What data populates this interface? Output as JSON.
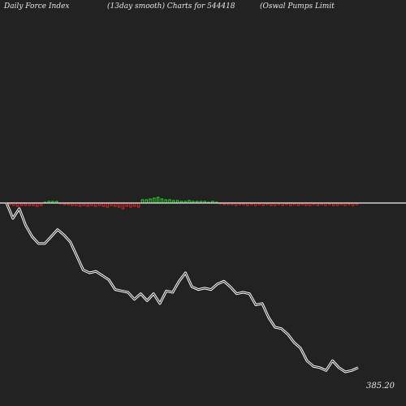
{
  "header": {
    "left": "Daily Force  Index",
    "center": "(13day smooth) Charts for 544418",
    "right": "(Oswal Pumps Limit"
  },
  "colors": {
    "background": "#222222",
    "zero_line": "#cfcfcf",
    "price_line": "#ffffff",
    "bar_positive": "#22dd22",
    "bar_negative": "#ee2222"
  },
  "chart_data": {
    "type": "line",
    "title": "Daily Force Index (13day smooth) Charts for 544418 (Oswal Pumps Limit",
    "last_price_label": "385.20",
    "series": [
      {
        "name": "price",
        "values": [
          1.0,
          0.89,
          0.96,
          0.84,
          0.76,
          0.71,
          0.71,
          0.76,
          0.81,
          0.77,
          0.72,
          0.62,
          0.52,
          0.5,
          0.51,
          0.48,
          0.45,
          0.38,
          0.37,
          0.36,
          0.31,
          0.35,
          0.3,
          0.35,
          0.28,
          0.37,
          0.36,
          0.44,
          0.5,
          0.4,
          0.38,
          0.39,
          0.38,
          0.42,
          0.44,
          0.4,
          0.35,
          0.36,
          0.35,
          0.27,
          0.28,
          0.18,
          0.11,
          0.1,
          0.06,
          0.0,
          -0.04,
          -0.13,
          -0.17,
          -0.18,
          -0.2,
          -0.13,
          -0.18,
          -0.21,
          -0.2,
          -0.18
        ]
      },
      {
        "name": "force_index",
        "values": [
          -2,
          -3,
          -4,
          -3,
          -3,
          -3,
          -3,
          -4,
          -3,
          1,
          2,
          2,
          2,
          -1,
          -2,
          -2,
          -3,
          -3,
          -4,
          -3,
          -4,
          -3,
          -4,
          -3,
          -4,
          -5,
          -3,
          -4,
          -5,
          -7,
          -4,
          -5,
          -4,
          -5,
          4,
          4,
          5,
          6,
          7,
          5,
          4,
          4,
          3,
          3,
          2,
          2,
          3,
          2,
          2,
          2,
          2,
          1,
          2,
          1,
          -1,
          -2,
          -2,
          -2,
          -3,
          -2,
          -2,
          -3,
          -2,
          -3,
          -2,
          -3,
          -2,
          -3,
          -3,
          -2,
          -3,
          -2,
          -3,
          -2,
          -3,
          -2,
          -3,
          -3,
          -2,
          -3,
          -2,
          -3,
          -2,
          -3,
          -3,
          -2,
          -3,
          -2,
          -3,
          -2
        ]
      }
    ],
    "xlabel": "",
    "ylabel": "",
    "grid": false
  }
}
